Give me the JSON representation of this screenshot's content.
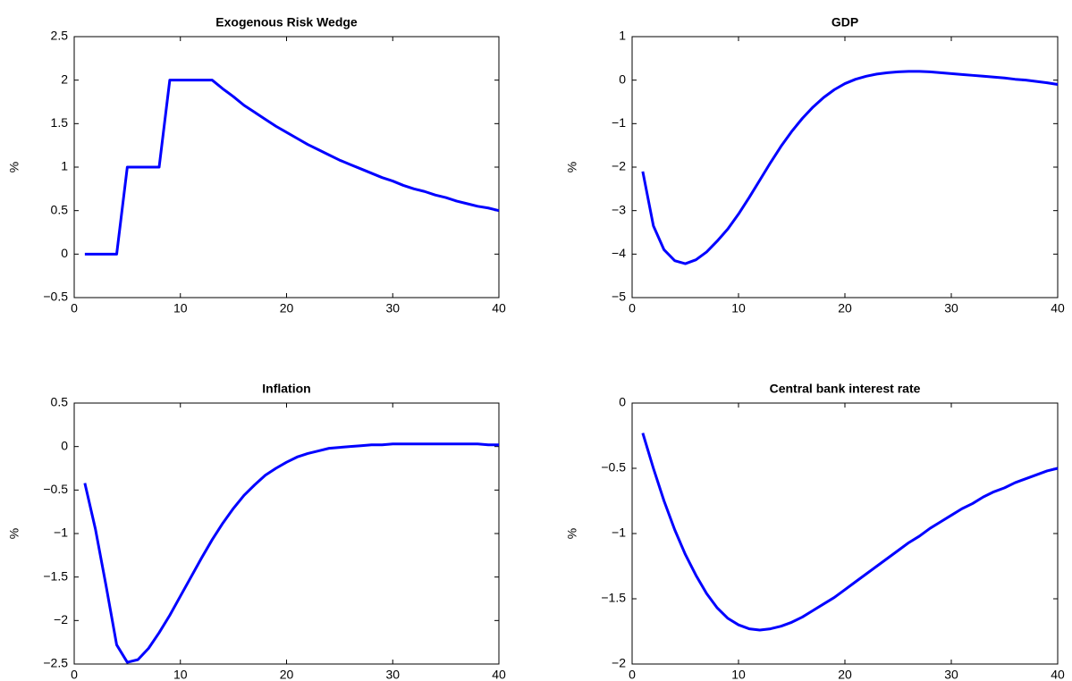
{
  "chart_data": [
    {
      "type": "line",
      "title": "Exogenous Risk Wedge",
      "ylabel": "%",
      "color": "#0000ff",
      "x": [
        1,
        2,
        3,
        4,
        5,
        6,
        7,
        8,
        9,
        10,
        11,
        12,
        13,
        14,
        15,
        16,
        17,
        18,
        19,
        20,
        21,
        22,
        23,
        24,
        25,
        26,
        27,
        28,
        29,
        30,
        31,
        32,
        33,
        34,
        35,
        36,
        37,
        38,
        39,
        40
      ],
      "values": [
        0,
        0,
        0,
        0,
        1,
        1,
        1,
        1,
        2,
        2,
        2,
        2,
        2,
        1.9,
        1.81,
        1.71,
        1.63,
        1.55,
        1.47,
        1.4,
        1.33,
        1.26,
        1.2,
        1.14,
        1.08,
        1.03,
        0.98,
        0.93,
        0.88,
        0.84,
        0.79,
        0.75,
        0.72,
        0.68,
        0.65,
        0.61,
        0.58,
        0.55,
        0.53,
        0.5
      ],
      "xlim": [
        0,
        40
      ],
      "xticks": [
        0,
        10,
        20,
        30,
        40
      ],
      "ylim": [
        -0.5,
        2.5
      ],
      "yticks": [
        {
          "value": -0.5,
          "label": "−0.5"
        },
        0,
        0.5,
        1,
        1.5,
        2,
        2.5
      ]
    },
    {
      "type": "line",
      "title": "GDP",
      "ylabel": "%",
      "color": "#0000ff",
      "x": [
        1,
        2,
        3,
        4,
        5,
        6,
        7,
        8,
        9,
        10,
        11,
        12,
        13,
        14,
        15,
        16,
        17,
        18,
        19,
        20,
        21,
        22,
        23,
        24,
        25,
        26,
        27,
        28,
        29,
        30,
        31,
        32,
        33,
        34,
        35,
        36,
        37,
        38,
        39,
        40
      ],
      "values": [
        -2.1,
        -3.35,
        -3.9,
        -4.15,
        -4.22,
        -4.13,
        -3.95,
        -3.7,
        -3.42,
        -3.08,
        -2.7,
        -2.3,
        -1.9,
        -1.52,
        -1.18,
        -0.88,
        -0.62,
        -0.4,
        -0.22,
        -0.08,
        0.02,
        0.09,
        0.14,
        0.17,
        0.19,
        0.2,
        0.2,
        0.19,
        0.17,
        0.15,
        0.13,
        0.11,
        0.09,
        0.07,
        0.05,
        0.02,
        0,
        -0.03,
        -0.06,
        -0.1
      ],
      "xlim": [
        0,
        40
      ],
      "xticks": [
        0,
        10,
        20,
        30,
        40
      ],
      "ylim": [
        -5,
        1
      ],
      "yticks": [
        {
          "value": -5,
          "label": "−5"
        },
        {
          "value": -4,
          "label": "−4"
        },
        {
          "value": -3,
          "label": "−3"
        },
        {
          "value": -2,
          "label": "−2"
        },
        {
          "value": -1,
          "label": "−1"
        },
        0,
        1
      ]
    },
    {
      "type": "line",
      "title": "Inflation",
      "ylabel": "%",
      "color": "#0000ff",
      "x": [
        1,
        2,
        3,
        4,
        5,
        6,
        7,
        8,
        9,
        10,
        11,
        12,
        13,
        14,
        15,
        16,
        17,
        18,
        19,
        20,
        21,
        22,
        23,
        24,
        25,
        26,
        27,
        28,
        29,
        30,
        31,
        32,
        33,
        34,
        35,
        36,
        37,
        38,
        39,
        40
      ],
      "values": [
        -0.42,
        -0.95,
        -1.6,
        -2.28,
        -2.48,
        -2.45,
        -2.32,
        -2.14,
        -1.94,
        -1.72,
        -1.5,
        -1.28,
        -1.07,
        -0.88,
        -0.71,
        -0.56,
        -0.44,
        -0.33,
        -0.25,
        -0.18,
        -0.12,
        -0.08,
        -0.05,
        -0.02,
        -0.01,
        0,
        0.01,
        0.02,
        0.02,
        0.03,
        0.03,
        0.03,
        0.03,
        0.03,
        0.03,
        0.03,
        0.03,
        0.03,
        0.02,
        0.02
      ],
      "xlim": [
        0,
        40
      ],
      "xticks": [
        0,
        10,
        20,
        30,
        40
      ],
      "ylim": [
        -2.5,
        0.5
      ],
      "yticks": [
        {
          "value": -2.5,
          "label": "−2.5"
        },
        {
          "value": -2,
          "label": "−2"
        },
        {
          "value": -1.5,
          "label": "−1.5"
        },
        {
          "value": -1,
          "label": "−1"
        },
        {
          "value": -0.5,
          "label": "−0.5"
        },
        0,
        0.5
      ]
    },
    {
      "type": "line",
      "title": "Central bank interest rate",
      "ylabel": "%",
      "color": "#0000ff",
      "x": [
        1,
        2,
        3,
        4,
        5,
        6,
        7,
        8,
        9,
        10,
        11,
        12,
        13,
        14,
        15,
        16,
        17,
        18,
        19,
        20,
        21,
        22,
        23,
        24,
        25,
        26,
        27,
        28,
        29,
        30,
        31,
        32,
        33,
        34,
        35,
        36,
        37,
        38,
        39,
        40
      ],
      "values": [
        -0.23,
        -0.5,
        -0.75,
        -0.97,
        -1.16,
        -1.32,
        -1.46,
        -1.57,
        -1.65,
        -1.7,
        -1.73,
        -1.74,
        -1.73,
        -1.71,
        -1.68,
        -1.64,
        -1.59,
        -1.54,
        -1.49,
        -1.43,
        -1.37,
        -1.31,
        -1.25,
        -1.19,
        -1.13,
        -1.07,
        -1.02,
        -0.96,
        -0.91,
        -0.86,
        -0.81,
        -0.77,
        -0.72,
        -0.68,
        -0.65,
        -0.61,
        -0.58,
        -0.55,
        -0.52,
        -0.5
      ],
      "xlim": [
        0,
        40
      ],
      "xticks": [
        0,
        10,
        20,
        30,
        40
      ],
      "ylim": [
        -2,
        0
      ],
      "yticks": [
        {
          "value": -2,
          "label": "−2"
        },
        {
          "value": -1.5,
          "label": "−1.5"
        },
        {
          "value": -1,
          "label": "−1"
        },
        {
          "value": -0.5,
          "label": "−0.5"
        },
        0
      ]
    }
  ]
}
